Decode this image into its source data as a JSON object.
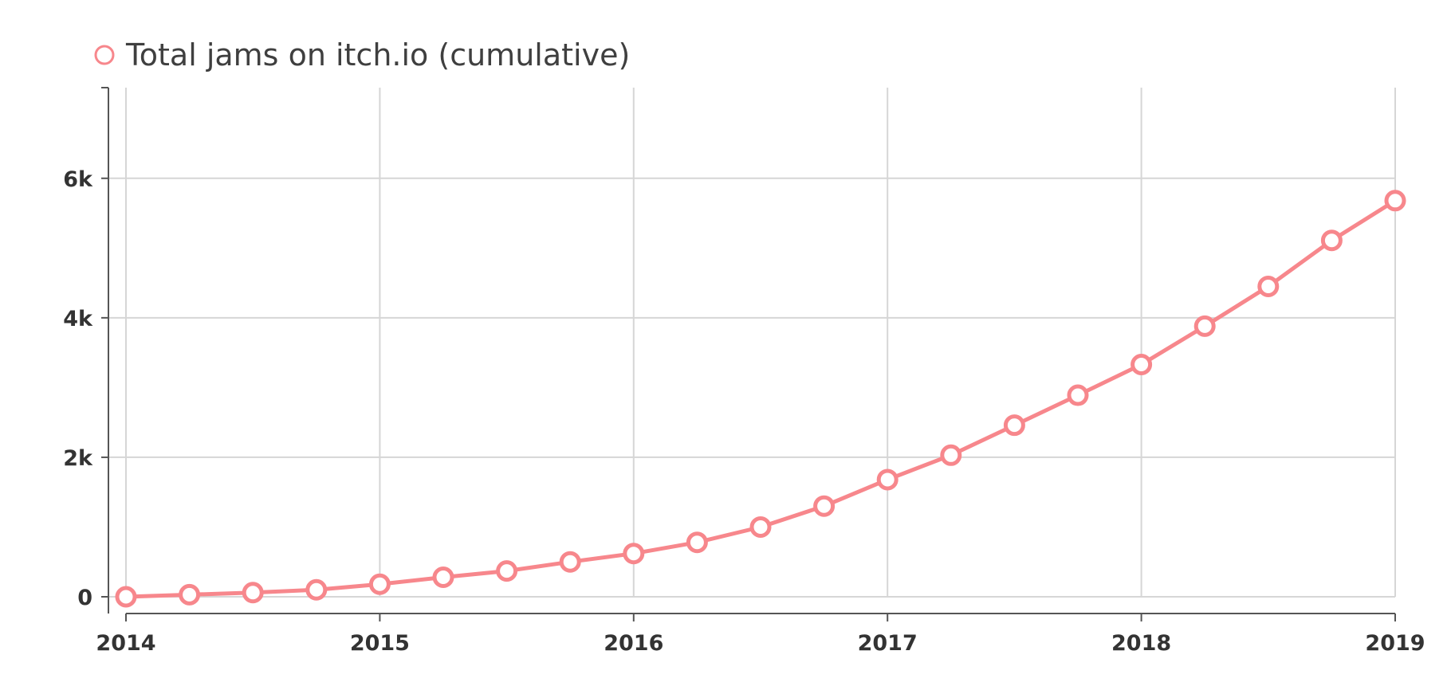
{
  "chart_data": {
    "type": "line",
    "legend": {
      "position": "top-left",
      "entries": [
        "Total jams on itch.io (cumulative)"
      ]
    },
    "series": [
      {
        "name": "Total jams on itch.io (cumulative)",
        "color": "#f7878c",
        "x": [
          2014.0,
          2014.25,
          2014.5,
          2014.75,
          2015.0,
          2015.25,
          2015.5,
          2015.75,
          2016.0,
          2016.25,
          2016.5,
          2016.75,
          2017.0,
          2017.25,
          2017.5,
          2017.75,
          2018.0,
          2018.25,
          2018.5,
          2018.75,
          2019.0
        ],
        "values": [
          0,
          30,
          60,
          100,
          180,
          280,
          370,
          500,
          620,
          780,
          1000,
          1300,
          1680,
          2030,
          2460,
          2890,
          3330,
          3880,
          4450,
          5110,
          5680
        ]
      }
    ],
    "x_ticks": [
      "2014",
      "2015",
      "2016",
      "2017",
      "2018",
      "2019"
    ],
    "x_tick_values": [
      2014,
      2015,
      2016,
      2017,
      2018,
      2019
    ],
    "y_ticks": [
      "0",
      "2k",
      "4k",
      "6k"
    ],
    "y_tick_values": [
      0,
      2000,
      4000,
      6000
    ],
    "xlim": [
      2014,
      2019
    ],
    "ylim": [
      0,
      7300
    ],
    "grid": true
  }
}
